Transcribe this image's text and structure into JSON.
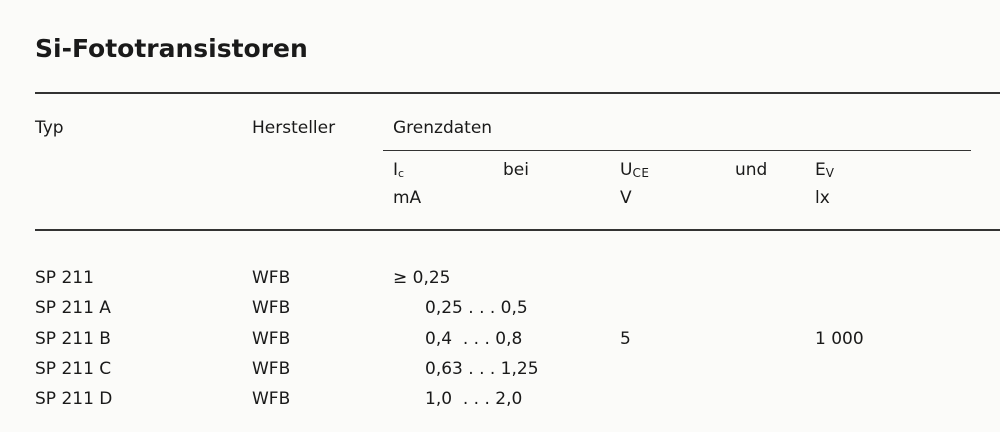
{
  "title": "Si-Fototransistoren",
  "headers": {
    "typ": "Typ",
    "hersteller": "Hersteller",
    "grenzdaten": "Grenzdaten",
    "ic_symbol": "I",
    "ic_sub": "c",
    "ic_unit": "mA",
    "bei": "bei",
    "uce_symbol": "U",
    "uce_sub": "CE",
    "uce_unit": "V",
    "und": "und",
    "ev_symbol": "E",
    "ev_sub": "V",
    "ev_unit": "lx"
  },
  "rows": [
    {
      "typ": "SP 211",
      "hersteller": "WFB",
      "ic": "≥ 0,25"
    },
    {
      "typ": "SP 211 A",
      "hersteller": "WFB",
      "ic": "0,25 . . . 0,5"
    },
    {
      "typ": "SP 211 B",
      "hersteller": "WFB",
      "ic": "0,4  . . . 0,8"
    },
    {
      "typ": "SP 211 C",
      "hersteller": "WFB",
      "ic": "0,63 . . . 1,25"
    },
    {
      "typ": "SP 211 D",
      "hersteller": "WFB",
      "ic": "1,0  . . . 2,0"
    }
  ],
  "shared": {
    "uce": "5",
    "ev": "1 000"
  }
}
